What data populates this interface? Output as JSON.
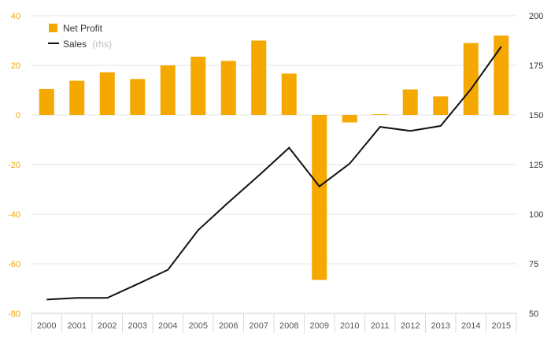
{
  "chart_data": {
    "type": "bar",
    "categories": [
      "2000",
      "2001",
      "2002",
      "2003",
      "2004",
      "2005",
      "2006",
      "2007",
      "2008",
      "2009",
      "2010",
      "2011",
      "2012",
      "2013",
      "2014",
      "2015"
    ],
    "series": [
      {
        "name": "Net Profit",
        "type": "bar",
        "axis": "left",
        "color": "#f5a800",
        "values": [
          10.5,
          13.8,
          17.2,
          14.5,
          20.0,
          23.5,
          21.8,
          30.0,
          16.7,
          -66.5,
          -3.0,
          0.3,
          10.3,
          7.5,
          29.0,
          32.0
        ]
      },
      {
        "name": "Sales",
        "type": "line",
        "axis": "right",
        "color": "#111111",
        "values": [
          57.0,
          57.8,
          57.8,
          64.8,
          72.0,
          92.0,
          106.0,
          119.5,
          133.5,
          114.0,
          125.5,
          144.0,
          142.0,
          144.5,
          163.0,
          184.5
        ]
      }
    ],
    "legend": [
      {
        "label": "Net Profit",
        "sub": ""
      },
      {
        "label": "Sales",
        "sub": "(rhs)"
      }
    ],
    "y_left": {
      "ylim": [
        -80,
        40
      ],
      "ticks": [
        -80,
        -60,
        -40,
        -20,
        0,
        20,
        40
      ]
    },
    "y_right": {
      "ylim": [
        50,
        200
      ],
      "ticks": [
        50,
        75,
        100,
        125,
        150,
        175,
        200
      ]
    },
    "grid": true,
    "legend_position": "top-left"
  }
}
